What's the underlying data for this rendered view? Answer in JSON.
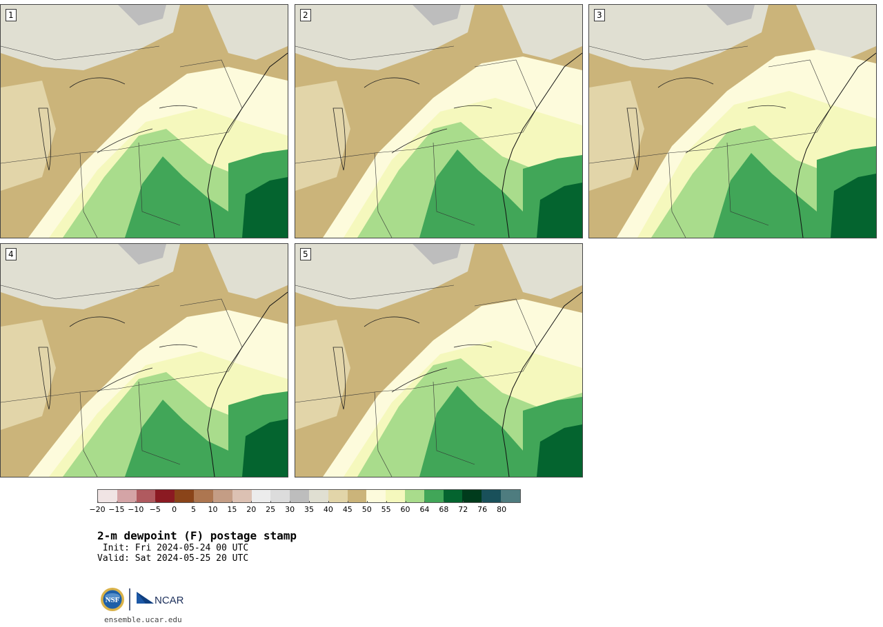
{
  "panels": [
    {
      "label": "1"
    },
    {
      "label": "2"
    },
    {
      "label": "3"
    },
    {
      "label": "4"
    },
    {
      "label": "5"
    }
  ],
  "colorbar": {
    "colors": [
      "#f0e4e4",
      "#d4a4a6",
      "#b05a5f",
      "#8b1a22",
      "#8a4419",
      "#ad7650",
      "#c49d85",
      "#dcc1b3",
      "#ececec",
      "#dcdcdc",
      "#bdbdbd",
      "#e0dfd2",
      "#e2d5a9",
      "#cbb47a",
      "#fdfbdc",
      "#f5f8bd",
      "#a9dc8c",
      "#41a658",
      "#04642f",
      "#003b1c",
      "#19505a",
      "#4e7c7f"
    ],
    "tick_labels": [
      "−20",
      "−15",
      "−10",
      "−5",
      "0",
      "5",
      "10",
      "15",
      "20",
      "25",
      "30",
      "35",
      "40",
      "45",
      "50",
      "55",
      "60",
      "64",
      "68",
      "72",
      "76",
      "80"
    ]
  },
  "title": {
    "main": "2-m dewpoint (F) postage stamp",
    "init": " Init: Fri 2024-05-24 00 UTC",
    "valid": "Valid: Sat 2024-05-25 20 UTC"
  },
  "logos": {
    "nsf": "NSF",
    "ncar": "NCAR"
  },
  "footer": {
    "site": "ensemble.ucar.edu"
  }
}
